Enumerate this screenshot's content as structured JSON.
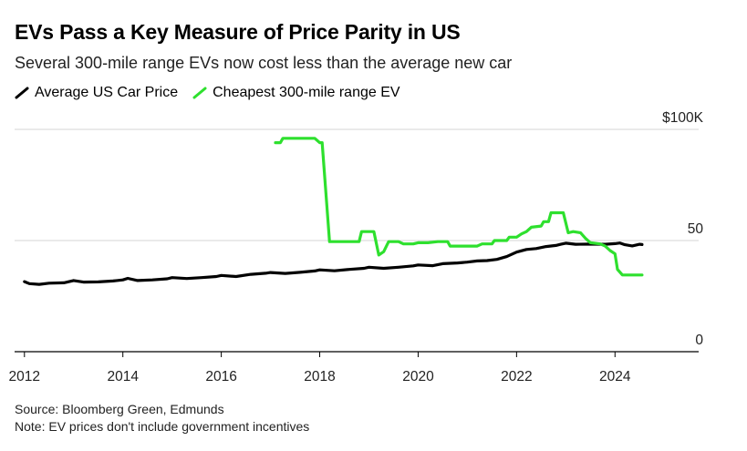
{
  "header": {
    "title": "EVs Pass a Key Measure of Price Parity in US",
    "subtitle": "Several 300-mile range EVs now cost less than the average new car"
  },
  "legend": [
    {
      "label": "Average US Car Price",
      "color": "#000000"
    },
    {
      "label": "Cheapest 300-mile range EV",
      "color": "#2ee02e"
    }
  ],
  "footer": {
    "source": "Source: Bloomberg Green, Edmunds",
    "note": "Note: EV prices don't include government incentives"
  },
  "chart_data": {
    "type": "line",
    "x_unit": "year",
    "y_unit": "thousands of US dollars",
    "xlim": [
      2011.8,
      2025.7
    ],
    "ylim": [
      0,
      100
    ],
    "x_ticks": [
      2012,
      2014,
      2016,
      2018,
      2020,
      2022,
      2024
    ],
    "x_tick_labels": [
      "2012",
      "2014",
      "2016",
      "2018",
      "2020",
      "2022",
      "2024"
    ],
    "y_ticks": [
      0,
      50,
      100
    ],
    "y_tick_labels": [
      "0",
      "50",
      "$100K"
    ],
    "grid": "horizontal",
    "legend_position": "top-left",
    "series": [
      {
        "name": "Average US Car Price",
        "color": "#000000",
        "points": [
          [
            2012.0,
            31.5
          ],
          [
            2012.1,
            30.6
          ],
          [
            2012.3,
            30.3
          ],
          [
            2012.5,
            30.8
          ],
          [
            2012.8,
            31.0
          ],
          [
            2013.0,
            32.0
          ],
          [
            2013.2,
            31.3
          ],
          [
            2013.5,
            31.4
          ],
          [
            2013.8,
            31.8
          ],
          [
            2014.0,
            32.3
          ],
          [
            2014.1,
            33.0
          ],
          [
            2014.3,
            32.0
          ],
          [
            2014.6,
            32.3
          ],
          [
            2014.9,
            32.8
          ],
          [
            2015.0,
            33.3
          ],
          [
            2015.3,
            32.9
          ],
          [
            2015.6,
            33.3
          ],
          [
            2015.9,
            33.8
          ],
          [
            2016.0,
            34.3
          ],
          [
            2016.3,
            33.8
          ],
          [
            2016.6,
            34.8
          ],
          [
            2016.9,
            35.3
          ],
          [
            2017.0,
            35.6
          ],
          [
            2017.3,
            35.2
          ],
          [
            2017.6,
            35.7
          ],
          [
            2017.9,
            36.3
          ],
          [
            2018.0,
            36.8
          ],
          [
            2018.3,
            36.4
          ],
          [
            2018.6,
            37.0
          ],
          [
            2018.9,
            37.5
          ],
          [
            2019.0,
            38.0
          ],
          [
            2019.3,
            37.5
          ],
          [
            2019.6,
            38.0
          ],
          [
            2019.9,
            38.6
          ],
          [
            2020.0,
            39.0
          ],
          [
            2020.3,
            38.7
          ],
          [
            2020.5,
            39.6
          ],
          [
            2020.8,
            39.9
          ],
          [
            2021.0,
            40.3
          ],
          [
            2021.2,
            40.8
          ],
          [
            2021.4,
            41.0
          ],
          [
            2021.6,
            41.5
          ],
          [
            2021.8,
            42.8
          ],
          [
            2022.0,
            44.8
          ],
          [
            2022.2,
            46.0
          ],
          [
            2022.4,
            46.4
          ],
          [
            2022.6,
            47.3
          ],
          [
            2022.8,
            47.8
          ],
          [
            2022.9,
            48.3
          ],
          [
            2023.0,
            48.8
          ],
          [
            2023.2,
            48.3
          ],
          [
            2023.5,
            48.4
          ],
          [
            2023.8,
            48.3
          ],
          [
            2024.0,
            48.6
          ],
          [
            2024.1,
            48.9
          ],
          [
            2024.2,
            48.1
          ],
          [
            2024.35,
            47.6
          ],
          [
            2024.5,
            48.3
          ],
          [
            2024.55,
            48.2
          ]
        ]
      },
      {
        "name": "Cheapest 300-mile range EV",
        "color": "#2ee02e",
        "points": [
          [
            2017.1,
            94.0
          ],
          [
            2017.2,
            94.0
          ],
          [
            2017.25,
            96.0
          ],
          [
            2017.4,
            96.0
          ],
          [
            2017.9,
            96.0
          ],
          [
            2018.0,
            94.0
          ],
          [
            2018.05,
            94.0
          ],
          [
            2018.2,
            49.5
          ],
          [
            2018.6,
            49.5
          ],
          [
            2018.8,
            49.5
          ],
          [
            2018.85,
            54.0
          ],
          [
            2019.1,
            54.0
          ],
          [
            2019.2,
            43.5
          ],
          [
            2019.3,
            45.0
          ],
          [
            2019.4,
            49.5
          ],
          [
            2019.6,
            49.5
          ],
          [
            2019.7,
            48.5
          ],
          [
            2019.9,
            48.5
          ],
          [
            2020.0,
            49.0
          ],
          [
            2020.2,
            49.0
          ],
          [
            2020.4,
            49.5
          ],
          [
            2020.6,
            49.5
          ],
          [
            2020.65,
            47.5
          ],
          [
            2021.0,
            47.5
          ],
          [
            2021.2,
            47.5
          ],
          [
            2021.3,
            48.5
          ],
          [
            2021.5,
            48.5
          ],
          [
            2021.55,
            50.0
          ],
          [
            2021.8,
            50.0
          ],
          [
            2021.85,
            51.5
          ],
          [
            2022.0,
            51.5
          ],
          [
            2022.1,
            53.0
          ],
          [
            2022.2,
            54.0
          ],
          [
            2022.3,
            56.0
          ],
          [
            2022.5,
            56.5
          ],
          [
            2022.55,
            58.5
          ],
          [
            2022.65,
            58.5
          ],
          [
            2022.7,
            62.5
          ],
          [
            2022.95,
            62.5
          ],
          [
            2023.05,
            53.5
          ],
          [
            2023.15,
            54.0
          ],
          [
            2023.3,
            53.5
          ],
          [
            2023.4,
            51.0
          ],
          [
            2023.5,
            49.0
          ],
          [
            2023.7,
            48.5
          ],
          [
            2023.8,
            47.5
          ],
          [
            2023.9,
            45.5
          ],
          [
            2024.0,
            44.0
          ],
          [
            2024.05,
            37.0
          ],
          [
            2024.15,
            34.5
          ],
          [
            2024.55,
            34.5
          ]
        ]
      }
    ]
  }
}
